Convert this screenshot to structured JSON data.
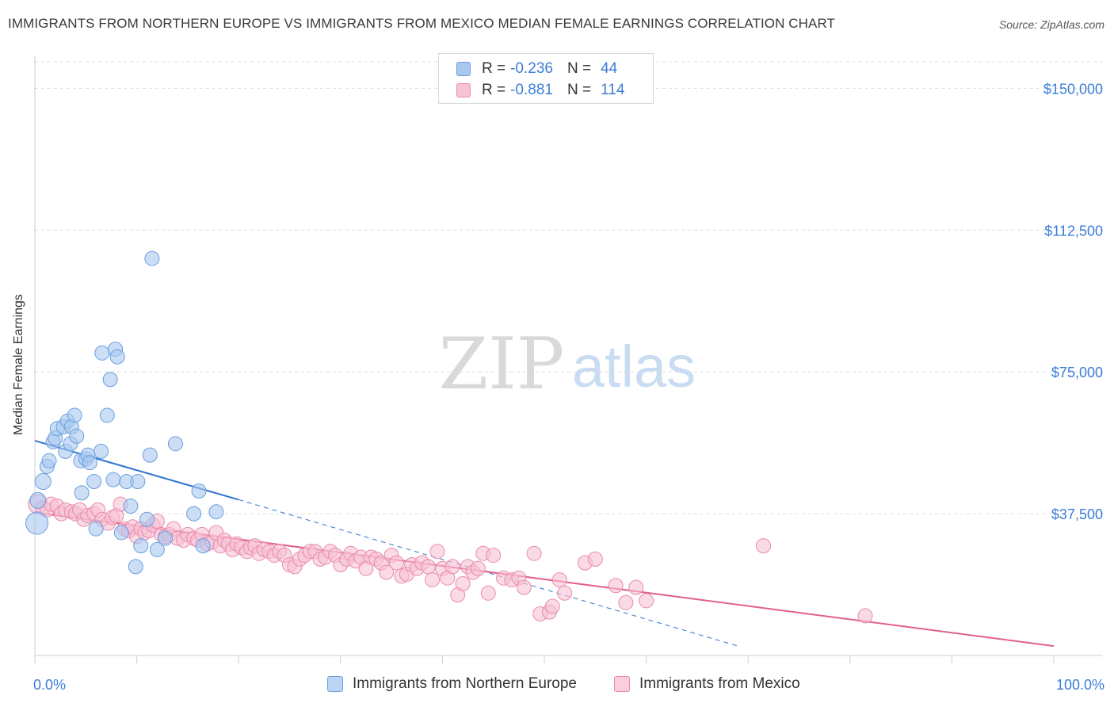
{
  "title": "IMMIGRANTS FROM NORTHERN EUROPE VS IMMIGRANTS FROM MEXICO MEDIAN FEMALE EARNINGS CORRELATION CHART",
  "source": "Source: ZipAtlas.com",
  "watermark": {
    "zip": "ZIP",
    "atlas": "atlas"
  },
  "legend": {
    "r_label": "R =",
    "n_label": "N =",
    "rows": [
      {
        "r": "-0.236",
        "n": "44",
        "color": "#a9c8f0",
        "border": "#6a9fdd"
      },
      {
        "r": "-0.881",
        "n": "114",
        "color": "#f7c2d3",
        "border": "#e98aab"
      }
    ]
  },
  "bottom_legend": [
    {
      "label": "Immigrants from Northern Europe"
    },
    {
      "label": "Immigrants from Mexico"
    }
  ],
  "chart_data": {
    "type": "scatter",
    "title": "IMMIGRANTS FROM NORTHERN EUROPE VS IMMIGRANTS FROM MEXICO MEDIAN FEMALE EARNINGS CORRELATION CHART",
    "xlabel": "",
    "ylabel": "Median Female Earnings",
    "xlim": [
      0,
      100
    ],
    "ylim": [
      0,
      157000
    ],
    "x_tick_labels": [
      "0.0%",
      "100.0%"
    ],
    "y_ticks": [
      37500,
      75000,
      112500,
      150000
    ],
    "y_tick_labels": [
      "$37,500",
      "$75,000",
      "$112,500",
      "$150,000"
    ],
    "grid": true,
    "series": [
      {
        "name": "Immigrants from Northern Europe",
        "color": "#6a9fdd",
        "fill": "#a9c8f0",
        "line_color": "#2f74d0",
        "trend": {
          "x0": 0,
          "y0": 56800,
          "x1": 20,
          "y1": 41200,
          "dash_to_x": 69,
          "dash_to_y": 2500
        },
        "points": [
          [
            0.2,
            35000,
            14
          ],
          [
            0.3,
            41000,
            10
          ],
          [
            0.8,
            46000,
            10
          ],
          [
            1.2,
            50000,
            9
          ],
          [
            1.4,
            51500,
            9
          ],
          [
            1.8,
            56500,
            9
          ],
          [
            2.0,
            57500,
            9
          ],
          [
            2.2,
            60000,
            9
          ],
          [
            2.8,
            60500,
            9
          ],
          [
            3.0,
            54000,
            9
          ],
          [
            3.2,
            62000,
            9
          ],
          [
            3.5,
            56000,
            9
          ],
          [
            3.6,
            60500,
            9
          ],
          [
            3.9,
            63500,
            9
          ],
          [
            4.1,
            58000,
            9
          ],
          [
            4.5,
            51500,
            9
          ],
          [
            4.6,
            43000,
            9
          ],
          [
            5.0,
            52000,
            9
          ],
          [
            5.2,
            53000,
            9
          ],
          [
            5.4,
            51000,
            9
          ],
          [
            5.8,
            46000,
            9
          ],
          [
            6.0,
            33500,
            9
          ],
          [
            6.5,
            54000,
            9
          ],
          [
            6.6,
            80000,
            9
          ],
          [
            7.1,
            63500,
            9
          ],
          [
            7.4,
            73000,
            9
          ],
          [
            7.7,
            46500,
            9
          ],
          [
            7.9,
            81000,
            9
          ],
          [
            8.1,
            79000,
            9
          ],
          [
            8.5,
            32500,
            9
          ],
          [
            9.0,
            46000,
            9
          ],
          [
            9.4,
            39500,
            9
          ],
          [
            9.9,
            23500,
            9
          ],
          [
            10.1,
            46000,
            9
          ],
          [
            10.4,
            29000,
            9
          ],
          [
            11.0,
            36000,
            9
          ],
          [
            11.3,
            53000,
            9
          ],
          [
            11.5,
            105000,
            9
          ],
          [
            12.0,
            28000,
            9
          ],
          [
            12.8,
            31000,
            9
          ],
          [
            13.8,
            56000,
            9
          ],
          [
            15.6,
            37500,
            9
          ],
          [
            16.1,
            43500,
            9
          ],
          [
            16.5,
            29000,
            9
          ],
          [
            17.8,
            38000,
            9
          ]
        ]
      },
      {
        "name": "Immigrants from Mexico",
        "color": "#e98aab",
        "fill": "#f7c2d3",
        "line_color": "#e0608c",
        "trend": {
          "x0": 0,
          "y0": 37800,
          "x1": 100,
          "y1": 2500
        },
        "points": [
          [
            0.3,
            40000,
            12
          ],
          [
            0.8,
            39000,
            9
          ],
          [
            1.2,
            38500,
            9
          ],
          [
            1.6,
            40000,
            9
          ],
          [
            2.2,
            39500,
            9
          ],
          [
            2.6,
            37500,
            9
          ],
          [
            3.0,
            38500,
            9
          ],
          [
            3.6,
            38000,
            9
          ],
          [
            4.0,
            37500,
            9
          ],
          [
            4.4,
            38500,
            9
          ],
          [
            4.8,
            36000,
            9
          ],
          [
            5.2,
            37000,
            9
          ],
          [
            5.8,
            37500,
            9
          ],
          [
            6.2,
            38500,
            9
          ],
          [
            6.6,
            36000,
            9
          ],
          [
            7.2,
            35000,
            9
          ],
          [
            7.6,
            36500,
            9
          ],
          [
            8.0,
            37000,
            9
          ],
          [
            8.4,
            40000,
            9
          ],
          [
            8.8,
            33500,
            9
          ],
          [
            9.2,
            33000,
            9
          ],
          [
            9.6,
            34000,
            9
          ],
          [
            10.0,
            31500,
            9
          ],
          [
            10.4,
            33500,
            9
          ],
          [
            10.8,
            32500,
            9
          ],
          [
            11.2,
            33000,
            9
          ],
          [
            11.6,
            34500,
            9
          ],
          [
            12.0,
            35500,
            9
          ],
          [
            12.4,
            32000,
            9
          ],
          [
            12.8,
            31500,
            9
          ],
          [
            13.2,
            32000,
            9
          ],
          [
            13.6,
            33500,
            9
          ],
          [
            14.0,
            31000,
            9
          ],
          [
            14.6,
            30500,
            9
          ],
          [
            15.0,
            32000,
            9
          ],
          [
            15.6,
            31000,
            9
          ],
          [
            16.0,
            30500,
            9
          ],
          [
            16.4,
            32000,
            9
          ],
          [
            16.9,
            29500,
            9
          ],
          [
            17.4,
            30000,
            9
          ],
          [
            17.8,
            32500,
            9
          ],
          [
            18.2,
            29000,
            9
          ],
          [
            18.6,
            30500,
            9
          ],
          [
            19.0,
            29500,
            9
          ],
          [
            19.4,
            28000,
            9
          ],
          [
            19.8,
            29500,
            9
          ],
          [
            20.3,
            28500,
            9
          ],
          [
            20.8,
            27500,
            9
          ],
          [
            21.2,
            28500,
            9
          ],
          [
            21.6,
            29000,
            9
          ],
          [
            22.0,
            27000,
            9
          ],
          [
            22.5,
            28000,
            9
          ],
          [
            23.0,
            27500,
            9
          ],
          [
            23.5,
            26500,
            9
          ],
          [
            24.0,
            27500,
            9
          ],
          [
            24.5,
            26500,
            9
          ],
          [
            25.0,
            24000,
            9
          ],
          [
            25.5,
            23500,
            9
          ],
          [
            26.0,
            25500,
            9
          ],
          [
            26.5,
            26500,
            9
          ],
          [
            27.0,
            27500,
            9
          ],
          [
            27.5,
            27500,
            9
          ],
          [
            28.0,
            25500,
            9
          ],
          [
            28.5,
            26000,
            9
          ],
          [
            29.0,
            27500,
            9
          ],
          [
            29.5,
            26500,
            9
          ],
          [
            30.0,
            24000,
            9
          ],
          [
            30.6,
            25500,
            9
          ],
          [
            31.0,
            27000,
            9
          ],
          [
            31.5,
            25000,
            9
          ],
          [
            32.0,
            26000,
            9
          ],
          [
            32.5,
            23000,
            9
          ],
          [
            33.0,
            26000,
            9
          ],
          [
            33.5,
            25500,
            9
          ],
          [
            34.0,
            24500,
            9
          ],
          [
            34.5,
            22000,
            9
          ],
          [
            35.0,
            26500,
            9
          ],
          [
            35.5,
            24500,
            9
          ],
          [
            36.0,
            21000,
            9
          ],
          [
            36.5,
            21500,
            9
          ],
          [
            37.0,
            24000,
            9
          ],
          [
            37.5,
            23000,
            9
          ],
          [
            38.0,
            24500,
            9
          ],
          [
            38.6,
            23500,
            9
          ],
          [
            39.0,
            20000,
            9
          ],
          [
            39.5,
            27500,
            9
          ],
          [
            40.0,
            23000,
            9
          ],
          [
            40.5,
            20500,
            9
          ],
          [
            41.0,
            23500,
            9
          ],
          [
            41.5,
            16000,
            9
          ],
          [
            42.0,
            19000,
            9
          ],
          [
            42.5,
            23500,
            9
          ],
          [
            43.0,
            22000,
            9
          ],
          [
            43.5,
            23000,
            9
          ],
          [
            44.0,
            27000,
            9
          ],
          [
            44.5,
            16500,
            9
          ],
          [
            45.0,
            26500,
            9
          ],
          [
            46.0,
            20500,
            9
          ],
          [
            46.8,
            20000,
            9
          ],
          [
            47.5,
            20500,
            9
          ],
          [
            48.0,
            18000,
            9
          ],
          [
            49.0,
            27000,
            9
          ],
          [
            49.6,
            11000,
            9
          ],
          [
            50.5,
            11500,
            9
          ],
          [
            50.8,
            13000,
            9
          ],
          [
            51.5,
            20000,
            9
          ],
          [
            52.0,
            16500,
            9
          ],
          [
            54.0,
            24500,
            9
          ],
          [
            55.0,
            25500,
            9
          ],
          [
            57.0,
            18500,
            9
          ],
          [
            58.0,
            14000,
            9
          ],
          [
            59.0,
            18000,
            9
          ],
          [
            60.0,
            14500,
            9
          ],
          [
            71.5,
            29000,
            9
          ],
          [
            81.5,
            10500,
            9
          ]
        ]
      }
    ]
  }
}
